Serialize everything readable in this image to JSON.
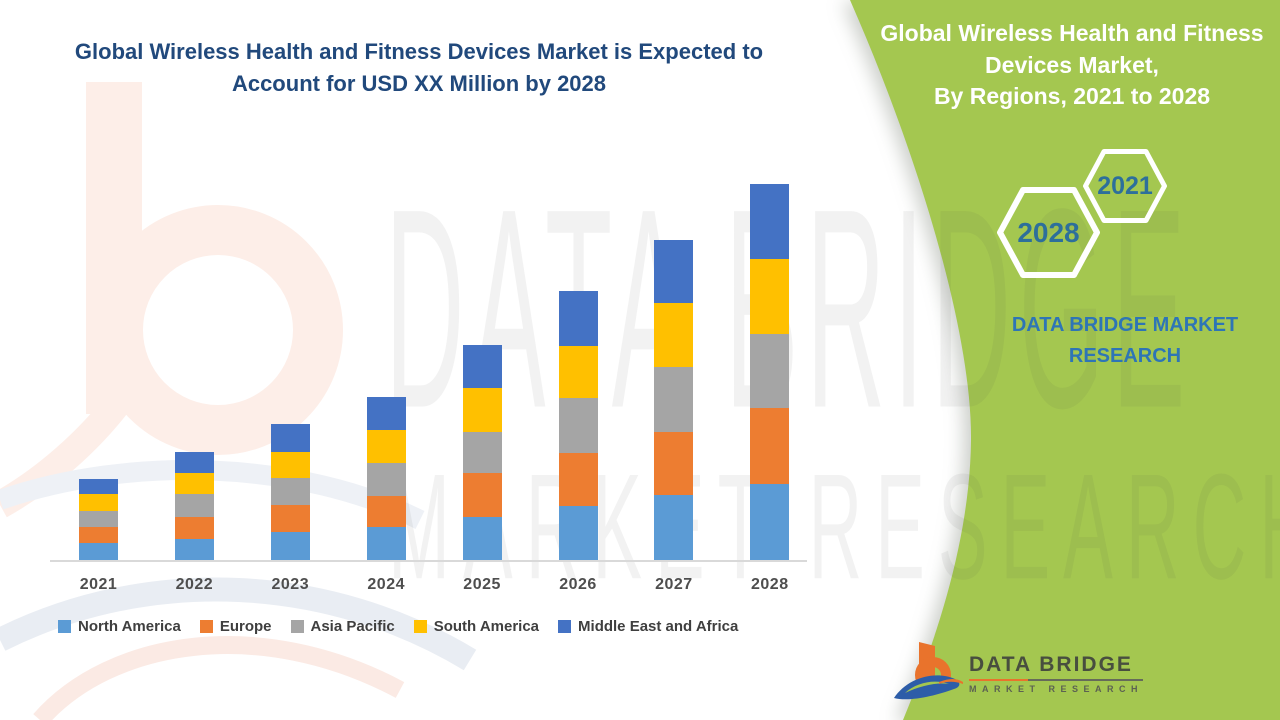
{
  "main_title": {
    "text": "Global Wireless Health and Fitness Devices Market is Expected to Account for USD XX Million by 2028",
    "color": "#21497c"
  },
  "watermarks": {
    "line1": "DATA BRIDGE",
    "line2": "MARKET RESEARCH"
  },
  "side_panel": {
    "background_color": "#a4c750",
    "title_lines": [
      "Global Wireless Health and Fitness",
      "Devices Market,",
      "By Regions, 2021 to 2028"
    ],
    "hexagons": [
      {
        "label": "2021"
      },
      {
        "label": "2028"
      }
    ],
    "year_text_color": "#2d6f9b",
    "brand_text_lines": [
      "DATA BRIDGE MARKET",
      "RESEARCH"
    ],
    "brand_text_color": "#2e75b6",
    "logo": {
      "primary_text": "DATA BRIDGE",
      "secondary_text": "MARKET RESEARCH",
      "orange": "#e9732c",
      "blue": "#2d5da8"
    }
  },
  "chart_data": {
    "type": "bar",
    "stacked": true,
    "title": "Global Wireless Health and Fitness Devices Market, By Regions, 2021 to 2028",
    "xlabel": "",
    "ylabel": "",
    "value_note": "Y-axis unlabeled in source (market size in USD XX Million); values are relative units estimated from bar pixel heights",
    "grid": false,
    "legend_position": "bottom",
    "categories": [
      "2021",
      "2022",
      "2023",
      "2024",
      "2025",
      "2026",
      "2027",
      "2028"
    ],
    "series": [
      {
        "name": "North America",
        "color": "#5B9BD5",
        "values": [
          17,
          21,
          28,
          33,
          43,
          54,
          65,
          76
        ]
      },
      {
        "name": "Europe",
        "color": "#ED7D31",
        "values": [
          16,
          22,
          27,
          31,
          44,
          53,
          63,
          76
        ]
      },
      {
        "name": "Asia Pacific",
        "color": "#A5A5A5",
        "values": [
          16,
          23,
          27,
          33,
          41,
          55,
          65,
          74
        ]
      },
      {
        "name": "South America",
        "color": "#FFC000",
        "values": [
          17,
          21,
          26,
          33,
          44,
          52,
          64,
          75
        ]
      },
      {
        "name": "Middle East and Africa",
        "color": "#4472C4",
        "values": [
          15,
          21,
          28,
          33,
          43,
          55,
          63,
          75
        ]
      }
    ],
    "totals": [
      81,
      108,
      136,
      163,
      215,
      269,
      320,
      376
    ]
  }
}
